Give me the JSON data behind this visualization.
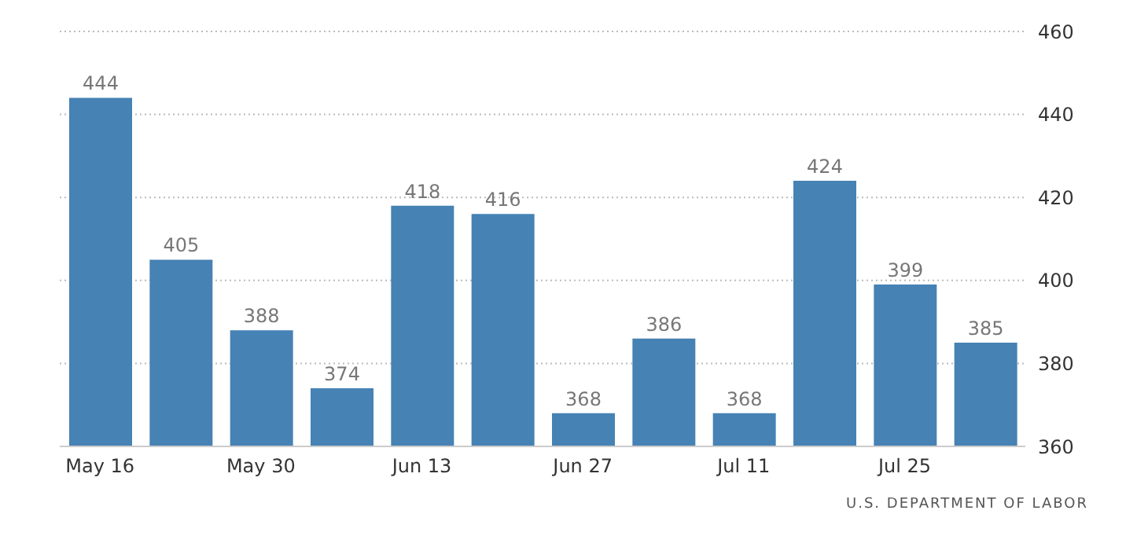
{
  "chart_data": {
    "type": "bar",
    "categories": [
      "May 16",
      null,
      "May 30",
      null,
      "Jun 13",
      null,
      "Jun 27",
      null,
      "Jul 11",
      null,
      "Jul 25",
      null
    ],
    "values": [
      444,
      405,
      388,
      374,
      418,
      416,
      368,
      386,
      368,
      424,
      399,
      385
    ],
    "color": "#4682b4",
    "ylim": [
      360,
      460
    ],
    "yticks": [
      360,
      380,
      400,
      420,
      440,
      460
    ],
    "grid": "y",
    "data_labels": true,
    "annotations": [
      "U.S. DEPARTMENT OF LABOR"
    ]
  }
}
